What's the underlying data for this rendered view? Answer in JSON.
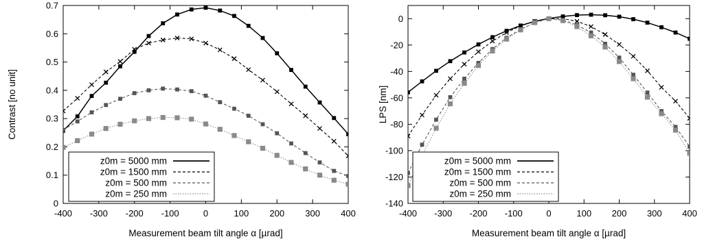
{
  "chart_data": [
    {
      "type": "line",
      "xlabel": "Measurement beam tilt angle α [µrad]",
      "ylabel": "Contrast [no unit]",
      "xlim": [
        -400,
        400
      ],
      "ylim": [
        0,
        0.7
      ],
      "x_ticks": [
        "-400",
        "-300",
        "-200",
        "-100",
        "0",
        "100",
        "200",
        "300",
        "400"
      ],
      "y_ticks": [
        "0",
        "0.1",
        "0.2",
        "0.3",
        "0.4",
        "0.5",
        "0.6",
        "0.7"
      ],
      "legend_position": "bottom-left",
      "x": [
        -400,
        -360,
        -320,
        -280,
        -240,
        -200,
        -160,
        -120,
        -80,
        -40,
        0,
        40,
        80,
        120,
        160,
        200,
        240,
        280,
        320,
        360,
        400
      ],
      "series": [
        {
          "name": "z0m = 5000 mm",
          "color": "#000000",
          "style": "solid",
          "values": [
            0.257,
            0.308,
            0.38,
            0.427,
            0.485,
            0.536,
            0.592,
            0.637,
            0.668,
            0.686,
            0.692,
            0.682,
            0.663,
            0.628,
            0.585,
            0.531,
            0.472,
            0.413,
            0.357,
            0.302,
            0.245
          ]
        },
        {
          "name": "z0m = 1500 mm",
          "color": "#000000",
          "style": "dashed",
          "values": [
            0.327,
            0.372,
            0.42,
            0.465,
            0.502,
            0.545,
            0.567,
            0.578,
            0.585,
            0.582,
            0.567,
            0.543,
            0.512,
            0.473,
            0.436,
            0.395,
            0.352,
            0.31,
            0.265,
            0.22,
            0.168
          ]
        },
        {
          "name": "z0m = 500 mm",
          "color": "#555555",
          "style": "dashed",
          "values": [
            0.26,
            0.29,
            0.322,
            0.348,
            0.37,
            0.39,
            0.4,
            0.406,
            0.403,
            0.397,
            0.381,
            0.358,
            0.335,
            0.31,
            0.28,
            0.248,
            0.212,
            0.178,
            0.145,
            0.115,
            0.097
          ]
        },
        {
          "name": "z0m = 250 mm",
          "color": "#8a8a8a",
          "style": "dotted",
          "values": [
            0.198,
            0.222,
            0.245,
            0.265,
            0.28,
            0.292,
            0.3,
            0.304,
            0.303,
            0.298,
            0.281,
            0.262,
            0.24,
            0.218,
            0.195,
            0.17,
            0.145,
            0.122,
            0.1,
            0.082,
            0.068
          ]
        }
      ]
    },
    {
      "type": "line",
      "xlabel": "Measurement beam tilt angle α [µrad]",
      "ylabel": "LPS [nm]",
      "xlim": [
        -400,
        400
      ],
      "ylim": [
        -140,
        10
      ],
      "x_ticks": [
        "-400",
        "-300",
        "-200",
        "-100",
        "0",
        "100",
        "200",
        "300",
        "400"
      ],
      "y_ticks": [
        "-140",
        "-120",
        "-100",
        "-80",
        "-60",
        "-40",
        "-20",
        "0"
      ],
      "legend_position": "bottom-left",
      "x": [
        -400,
        -360,
        -320,
        -280,
        -240,
        -200,
        -160,
        -120,
        -80,
        -40,
        0,
        40,
        80,
        120,
        160,
        200,
        240,
        280,
        320,
        360,
        400
      ],
      "series": [
        {
          "name": "z0m = 5000 mm",
          "color": "#000000",
          "style": "solid",
          "values": [
            -55.8,
            -47.5,
            -39.5,
            -32.2,
            -25.6,
            -19.5,
            -14.0,
            -9.2,
            -5.2,
            -2.0,
            0.2,
            1.7,
            2.7,
            3.0,
            2.6,
            1.5,
            -0.4,
            -3.0,
            -6.5,
            -10.5,
            -15.2
          ]
        },
        {
          "name": "z0m = 1500 mm",
          "color": "#000000",
          "style": "dashed",
          "values": [
            -89.0,
            -73.0,
            -58.0,
            -45.5,
            -34.5,
            -25.0,
            -17.0,
            -10.5,
            -5.5,
            -2.0,
            0.0,
            0.0,
            -2.0,
            -6.0,
            -12.0,
            -19.5,
            -28.5,
            -39.5,
            -52.0,
            -62.5,
            -75.5
          ]
        },
        {
          "name": "z0m = 500 mm",
          "color": "#555555",
          "style": "dashed",
          "values": [
            -117.0,
            -95.5,
            -76.5,
            -59.5,
            -45.5,
            -33.5,
            -23.0,
            -14.5,
            -8.0,
            -3.0,
            0.0,
            -1.0,
            -4.8,
            -10.5,
            -19.0,
            -29.5,
            -42.5,
            -56.0,
            -70.0,
            -82.0,
            -97.0
          ]
        },
        {
          "name": "z0m = 250 mm",
          "color": "#8a8a8a",
          "style": "dotted",
          "values": [
            -126.5,
            -103.5,
            -83.0,
            -64.5,
            -49.0,
            -35.5,
            -24.5,
            -15.5,
            -8.5,
            -3.0,
            0.0,
            -1.5,
            -6.0,
            -13.0,
            -21.5,
            -32.5,
            -45.5,
            -59.5,
            -72.0,
            -84.5,
            -102.0
          ]
        }
      ]
    }
  ]
}
